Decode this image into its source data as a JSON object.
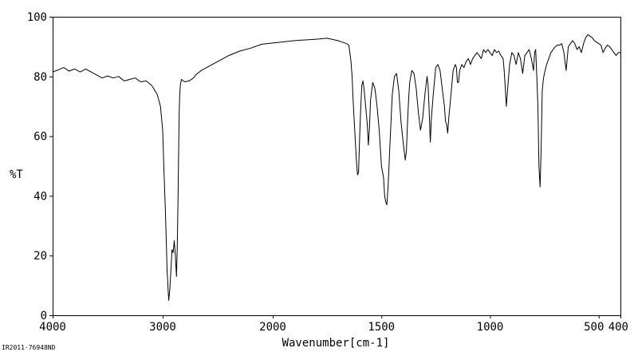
{
  "chart_data": {
    "type": "line",
    "title": "",
    "xlabel": "Wavenumber[cm-1]",
    "ylabel": "%T",
    "xlim": [
      4000,
      400
    ],
    "ylim": [
      0,
      100
    ],
    "x_ticks": [
      "4000",
      "3000",
      "2000",
      "1500",
      "1000",
      "500",
      "400"
    ],
    "y_ticks": [
      "0",
      "20",
      "40",
      "60",
      "80",
      "100"
    ],
    "grid": false,
    "legend": "none",
    "series": [
      {
        "x": [
          4000,
          3950,
          3900,
          3850,
          3800,
          3750,
          3700,
          3650,
          3600,
          3550,
          3500,
          3450,
          3400,
          3350,
          3300,
          3250,
          3200,
          3150,
          3100,
          3050,
          3020,
          3000,
          2990,
          2975,
          2965,
          2960,
          2955,
          2950,
          2945,
          2935,
          2925,
          2915,
          2905,
          2895,
          2885,
          2875,
          2868,
          2860,
          2855,
          2850,
          2845,
          2840,
          2830,
          2800,
          2760,
          2720,
          2700,
          2650,
          2600,
          2500,
          2400,
          2300,
          2200,
          2100,
          2000,
          1900,
          1800,
          1750,
          1700,
          1680,
          1660,
          1650,
          1645,
          1640,
          1635,
          1630,
          1625,
          1620,
          1615,
          1610,
          1605,
          1600,
          1595,
          1590,
          1585,
          1580,
          1575,
          1570,
          1565,
          1560,
          1555,
          1550,
          1540,
          1530,
          1520,
          1510,
          1500,
          1490,
          1485,
          1480,
          1475,
          1470,
          1465,
          1460,
          1455,
          1450,
          1440,
          1430,
          1420,
          1410,
          1400,
          1390,
          1385,
          1380,
          1375,
          1370,
          1360,
          1350,
          1340,
          1330,
          1320,
          1310,
          1300,
          1290,
          1285,
          1280,
          1275,
          1270,
          1260,
          1250,
          1240,
          1230,
          1220,
          1210,
          1205,
          1200,
          1195,
          1190,
          1180,
          1170,
          1160,
          1155,
          1150,
          1145,
          1140,
          1130,
          1120,
          1110,
          1100,
          1090,
          1080,
          1070,
          1060,
          1050,
          1040,
          1030,
          1020,
          1010,
          1000,
          990,
          980,
          970,
          960,
          950,
          940,
          935,
          930,
          925,
          920,
          910,
          900,
          890,
          880,
          870,
          860,
          850,
          840,
          830,
          820,
          810,
          800,
          795,
          790,
          785,
          780,
          775,
          770,
          765,
          760,
          755,
          750,
          740,
          730,
          720,
          710,
          700,
          690,
          680,
          670,
          660,
          650,
          640,
          630,
          620,
          610,
          600,
          590,
          580,
          570,
          560,
          550,
          540,
          530,
          520,
          510,
          500,
          490,
          480,
          470,
          460,
          450,
          440,
          430,
          420,
          410,
          400
        ],
        "y": [
          81.5,
          82.2,
          83,
          81.8,
          82.5,
          81.5,
          82.5,
          81.5,
          80.5,
          79.5,
          80.2,
          79.5,
          80,
          78.5,
          79,
          79.5,
          78.2,
          78.5,
          77,
          74,
          70,
          62,
          50,
          35,
          22,
          15,
          12,
          8,
          5,
          9,
          15,
          22,
          21,
          25,
          20,
          13,
          22,
          40,
          55,
          68,
          74,
          77,
          79,
          78.2,
          78.5,
          79.5,
          80.5,
          82,
          83,
          85,
          87,
          88.5,
          89.5,
          90.8,
          91.2,
          92,
          92.5,
          92.8,
          92,
          91.5,
          91,
          90.5,
          88,
          85,
          80,
          72,
          65,
          58,
          52,
          47,
          48,
          60,
          70,
          77,
          78.5,
          76,
          72,
          68,
          64,
          57,
          63,
          72,
          78,
          76,
          70,
          62,
          50,
          46,
          40,
          38,
          37,
          42,
          50,
          58,
          66,
          74,
          80,
          81,
          75,
          65,
          58,
          52,
          55,
          64,
          72,
          78,
          82,
          81,
          76,
          68,
          62,
          66,
          74,
          80,
          77,
          68,
          58,
          66,
          75,
          83,
          84,
          82,
          76,
          70,
          65,
          64,
          61,
          66,
          74,
          82,
          84,
          83,
          78,
          78,
          82,
          84,
          83,
          85,
          86,
          84,
          86,
          87,
          88,
          87,
          86,
          89,
          88,
          89,
          88,
          87,
          89,
          88,
          88.5,
          87,
          86,
          82,
          76,
          70,
          75,
          84,
          88,
          87,
          84,
          88,
          86,
          81,
          87,
          88,
          89,
          86,
          82,
          88,
          89,
          80,
          70,
          50,
          43,
          55,
          75,
          79,
          81,
          84,
          86,
          88,
          89,
          90,
          90.5,
          90.5,
          91,
          88,
          82,
          90,
          91,
          92,
          91,
          89,
          90,
          88,
          91,
          93,
          94,
          93.5,
          93,
          92,
          91.5,
          91,
          90.5,
          88,
          89.5,
          90.5,
          90,
          89,
          88,
          87,
          88,
          88
        ]
      }
    ]
  },
  "footer_id": "IR2011-76948ND"
}
